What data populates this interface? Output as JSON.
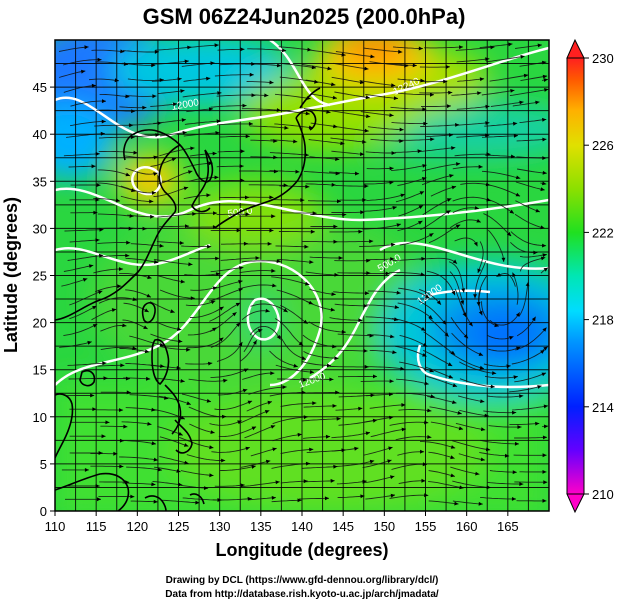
{
  "title": "GSM 06Z24Jun2025 (200.0hPa)",
  "xlabel": "Longitude (degrees)",
  "ylabel": "Latitude  (degrees)",
  "credits": [
    "Drawing by DCL (https://www.gfd-dennou.org/library/dcl/)",
    "Data from http://database.rish.kyoto-u.ac.jp/arch/jmadata/"
  ],
  "chart_data": {
    "type": "heatmap",
    "title": "GSM 06Z24Jun2025 (200.0hPa)",
    "xlabel": "Longitude (degrees)",
    "ylabel": "Latitude  (degrees)",
    "xlim": [
      110,
      170
    ],
    "ylim": [
      0,
      50
    ],
    "xticks": [
      "110",
      "115",
      "120",
      "125",
      "130",
      "135",
      "140",
      "145",
      "150",
      "155",
      "160",
      "165"
    ],
    "yticks": [
      "0",
      "5",
      "10",
      "15",
      "20",
      "25",
      "30",
      "35",
      "40",
      "45"
    ],
    "grid": true,
    "colorbar": {
      "min": 210,
      "max": 230,
      "ticks": [
        "210",
        "214",
        "218",
        "222",
        "226",
        "230"
      ],
      "colormap": [
        "#ff00c8",
        "#6400ff",
        "#0020ff",
        "#0096ff",
        "#00dcff",
        "#00e6b4",
        "#20e020",
        "#8ce000",
        "#e0e000",
        "#ffb000",
        "#ff5a00",
        "#ff2020"
      ]
    },
    "contour_labels": [
      "12000",
      "12240",
      "500.0",
      "500.0",
      "12000",
      "12000"
    ],
    "features": {
      "warm_center": {
        "lon": 146,
        "lat": 48.5,
        "value": 228
      },
      "warm_center_2": {
        "lon": 121,
        "lat": 36.5,
        "value": 226
      },
      "cold_region_northwest": {
        "lon": 115,
        "lat": 46,
        "value": 217
      },
      "cold_vortex_east": {
        "lon": 162,
        "lat": 20,
        "value": 218
      },
      "anticyclone_center": {
        "lon": 134,
        "lat": 22.5,
        "value": 221
      }
    }
  }
}
